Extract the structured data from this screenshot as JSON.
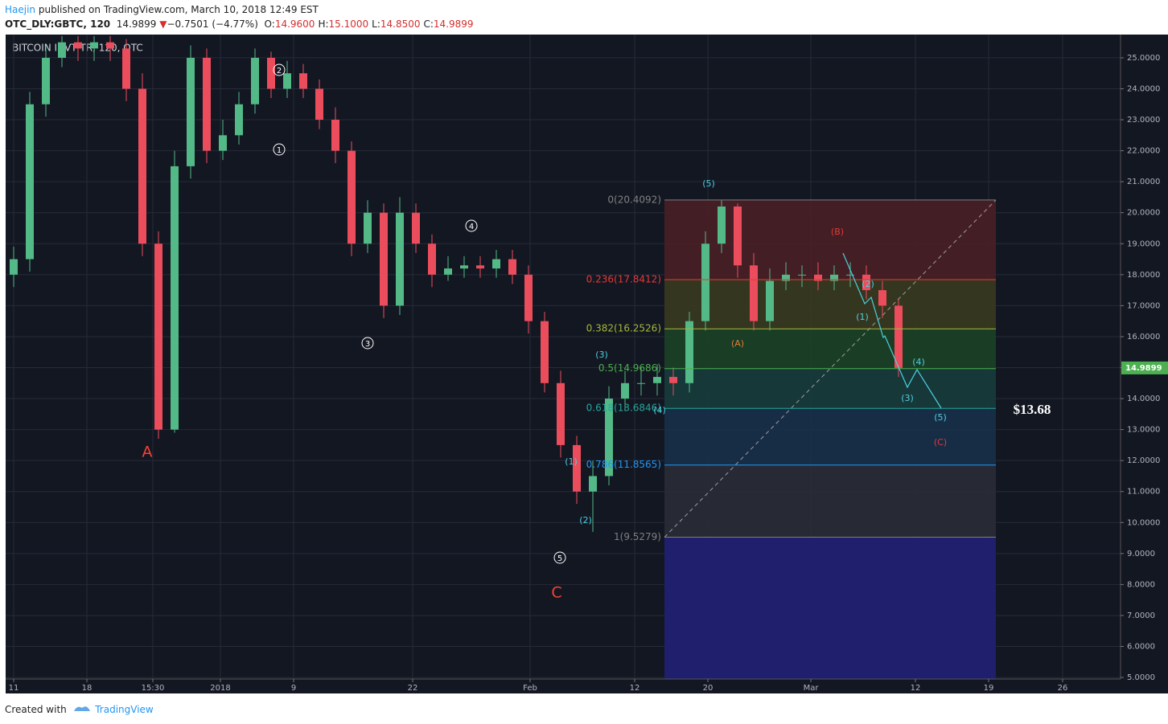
{
  "header": {
    "author": "Haejin",
    "published": "published on TradingView.com, March 10, 2018 12:49 EST",
    "symbol": "OTC_DLY:GBTC, 120",
    "last": "14.9899",
    "arrow": "▼",
    "change": "−0.7501 (−4.77%)",
    "ohlc": [
      {
        "label": "O:",
        "value": "14.9600"
      },
      {
        "label": "H:",
        "value": "15.1000"
      },
      {
        "label": "L:",
        "value": "14.8500"
      },
      {
        "label": "C:",
        "value": "14.9899"
      }
    ]
  },
  "chart_data": {
    "type": "candlestick",
    "legend": "BITCOIN INVT TR, 120, OTC",
    "xlim": [
      0,
      138.6
    ],
    "ylim": [
      4.95,
      25.75
    ],
    "xticks": [
      {
        "value": 1.0,
        "label": "11"
      },
      {
        "value": 10.1,
        "label": "18"
      },
      {
        "value": 18.3,
        "label": "15:30"
      },
      {
        "value": 26.7,
        "label": "2018"
      },
      {
        "value": 35.8,
        "label": "9"
      },
      {
        "value": 50.6,
        "label": "22"
      },
      {
        "value": 65.2,
        "label": "Feb"
      },
      {
        "value": 78.2,
        "label": "12"
      },
      {
        "value": 87.3,
        "label": "20"
      },
      {
        "value": 100.1,
        "label": "Mar"
      },
      {
        "value": 113.1,
        "label": "12"
      },
      {
        "value": 122.2,
        "label": "19"
      },
      {
        "value": 131.4,
        "label": "26"
      }
    ],
    "yticks": [
      {
        "value": 5,
        "label": "5.0000"
      },
      {
        "value": 6,
        "label": "6.0000"
      },
      {
        "value": 7,
        "label": "7.0000"
      },
      {
        "value": 8,
        "label": "8.0000"
      },
      {
        "value": 9,
        "label": "9.0000"
      },
      {
        "value": 10,
        "label": "10.0000"
      },
      {
        "value": 11,
        "label": "11.0000"
      },
      {
        "value": 12,
        "label": "12.0000"
      },
      {
        "value": 13,
        "label": "13.0000"
      },
      {
        "value": 14,
        "label": "14.0000"
      },
      {
        "value": 15,
        "label": "15.0000"
      },
      {
        "value": 16,
        "label": "16.0000"
      },
      {
        "value": 17,
        "label": "17.0000"
      },
      {
        "value": 18,
        "label": "18.0000"
      },
      {
        "value": 19,
        "label": "19.0000"
      },
      {
        "value": 20,
        "label": "20.0000"
      },
      {
        "value": 21,
        "label": "21.0000"
      },
      {
        "value": 22,
        "label": "22.0000"
      },
      {
        "value": 23,
        "label": "23.0000"
      },
      {
        "value": 24,
        "label": "24.0000"
      },
      {
        "value": 25,
        "label": "25.0000"
      }
    ],
    "grid": true,
    "up_color": "#53b987",
    "down_color": "#eb4d5c",
    "candles": {
      "x": [
        1,
        3,
        5,
        7,
        9,
        11,
        13,
        15,
        17,
        19,
        21,
        23,
        25,
        27,
        29,
        31,
        33,
        35,
        37,
        39,
        41,
        43,
        45,
        47,
        49,
        51,
        53,
        55,
        57,
        59,
        61,
        63,
        65,
        67,
        69,
        71,
        73,
        75,
        77,
        79,
        81,
        83,
        85,
        87,
        89,
        91,
        93,
        95,
        97,
        99,
        101,
        103,
        105,
        107,
        109,
        111
      ],
      "open": [
        18.0,
        18.5,
        23.5,
        25,
        25.5,
        25.3,
        25.5,
        25.3,
        24,
        19,
        13,
        21.5,
        25,
        22,
        22.5,
        23.5,
        25,
        24,
        24.5,
        24,
        23,
        22,
        19,
        20,
        17,
        20,
        19,
        18,
        18.2,
        18.3,
        18.2,
        18.5,
        18,
        16.5,
        14.5,
        12.5,
        11,
        11.5,
        14,
        14.5,
        14.5,
        14.7,
        14.5,
        16.5,
        19,
        20.2,
        18.3,
        16.5,
        17.8,
        18,
        18,
        17.8,
        18,
        18,
        17.5,
        17
      ],
      "high": [
        18.9,
        23.9,
        25.4,
        25.7,
        25.7,
        25.7,
        25.7,
        25.6,
        24.5,
        19.4,
        22,
        25.4,
        25.3,
        23,
        23.9,
        25.3,
        25.2,
        24.9,
        24.8,
        24.3,
        23.4,
        22.3,
        20.4,
        20.3,
        20.5,
        20.3,
        19.3,
        18.6,
        18.6,
        18.6,
        18.8,
        18.8,
        18.3,
        16.8,
        14.9,
        12.8,
        12,
        14.4,
        14.9,
        15,
        15.1,
        15,
        16.8,
        19.4,
        20.4,
        20.3,
        18.7,
        18.2,
        18.4,
        18.3,
        18.4,
        18.3,
        18.4,
        18.3,
        17.8,
        17.2
      ],
      "low": [
        17.6,
        18.1,
        23.1,
        24.7,
        24.9,
        24.9,
        24.9,
        23.6,
        18.6,
        12.7,
        12.9,
        21.1,
        21.6,
        21.7,
        22.2,
        23.2,
        23.7,
        23.7,
        23.7,
        22.7,
        21.6,
        18.6,
        18.7,
        16.6,
        16.7,
        18.7,
        17.6,
        17.8,
        17.9,
        17.9,
        17.9,
        17.7,
        16.1,
        14.2,
        12.1,
        10.6,
        9.7,
        11.2,
        13.6,
        14.1,
        14.1,
        14.1,
        14.2,
        16.2,
        18.7,
        17.9,
        16.2,
        16.2,
        17.5,
        17.6,
        17.5,
        17.5,
        17.6,
        17.2,
        16.6,
        14.7
      ],
      "close": [
        18.5,
        23.5,
        25,
        25.5,
        25.3,
        25.5,
        25.3,
        24,
        19,
        13,
        21.5,
        25,
        22,
        22.5,
        23.5,
        25,
        24,
        24.5,
        24,
        23,
        22,
        19,
        20,
        17,
        20,
        19,
        18,
        18.2,
        18.3,
        18.2,
        18.5,
        18,
        16.5,
        14.5,
        12.5,
        11,
        11.5,
        14,
        14.5,
        14.5,
        14.7,
        14.5,
        16.5,
        19,
        20.2,
        18.3,
        16.5,
        17.8,
        18,
        18,
        17.8,
        18,
        18,
        17.5,
        17,
        14.99
      ]
    },
    "fib": {
      "x_range": [
        81.9,
        123.1
      ],
      "bottom_color": "#1f1f6e",
      "levels": [
        {
          "value": 20.4092,
          "label": "0(20.4092)",
          "color": "#808080",
          "band": "#4a1f26"
        },
        {
          "value": 17.8412,
          "label": "0.236(17.8412)",
          "color": "#e53935",
          "band": "#3a3a20"
        },
        {
          "value": 16.2526,
          "label": "0.382(16.2526)",
          "color": "#a5b839",
          "band": "#1c4226"
        },
        {
          "value": 14.9686,
          "label": "0.5(14.9686)",
          "color": "#4caf50",
          "band": "#173c3c"
        },
        {
          "value": 13.6846,
          "label": "0.618(13.6846)",
          "color": "#26a69a",
          "band": "#18304a"
        },
        {
          "value": 11.8565,
          "label": "0.786(11.8565)",
          "color": "#2196f3",
          "band": "#2a2c36"
        },
        {
          "value": 9.5279,
          "label": "1(9.5279)",
          "color": "#808080",
          "band": null
        }
      ]
    },
    "last_price": {
      "value": 14.9899,
      "color": "#4caf50"
    },
    "target": "$13.68",
    "annotations": [
      {
        "text": "1",
        "color": "#ffffff",
        "style": "circle"
      },
      {
        "text": "2",
        "color": "#ffffff",
        "style": "circle"
      },
      {
        "text": "3",
        "color": "#ffffff",
        "style": "circle"
      },
      {
        "text": "4",
        "color": "#ffffff",
        "style": "circle"
      },
      {
        "text": "5",
        "color": "#ffffff",
        "style": "circle"
      },
      {
        "text": "A",
        "color": "#f44336",
        "style": "large"
      },
      {
        "text": "C",
        "color": "#f44336",
        "style": "large"
      },
      {
        "text": "(5)",
        "color": "#4dd0e1",
        "style": "small"
      },
      {
        "text": "(3)",
        "color": "#4dd0e1",
        "style": "small"
      },
      {
        "text": "(4)",
        "color": "#4dd0e1",
        "style": "small"
      },
      {
        "text": "(1)",
        "color": "#4dd0e1",
        "style": "small"
      },
      {
        "text": "(2)",
        "color": "#4dd0e1",
        "style": "small"
      },
      {
        "text": "(2)",
        "color": "#4dd0e1",
        "style": "small"
      },
      {
        "text": "(1)",
        "color": "#4dd0e1",
        "style": "small"
      },
      {
        "text": "(4)",
        "color": "#4dd0e1",
        "style": "small"
      },
      {
        "text": "(3)",
        "color": "#4dd0e1",
        "style": "small"
      },
      {
        "text": "(5)",
        "color": "#4dd0e1",
        "style": "small"
      },
      {
        "text": "(A)",
        "color": "#e07b39",
        "style": "small"
      },
      {
        "text": "(B)",
        "color": "#e53935",
        "style": "small"
      },
      {
        "text": "(C)",
        "color": "#e53935",
        "style": "small"
      }
    ]
  },
  "footer": {
    "created": "Created with",
    "brand": "TradingView"
  }
}
